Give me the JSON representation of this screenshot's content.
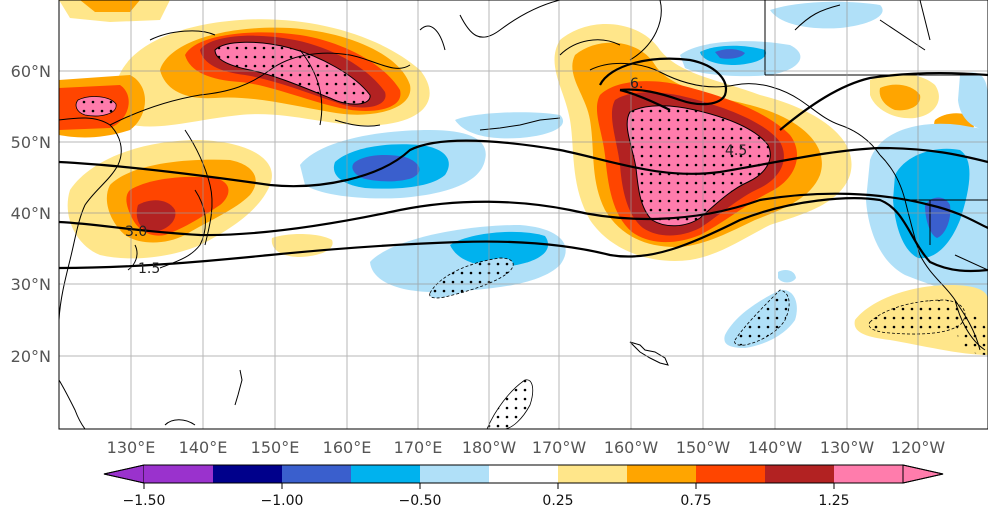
{
  "map": {
    "lon_ticks": [
      "130°E",
      "140°E",
      "150°E",
      "160°E",
      "170°E",
      "180°W",
      "170°W",
      "160°W",
      "150°W",
      "140°W",
      "130°W",
      "120°W"
    ],
    "lat_ticks": [
      "60°N",
      "50°N",
      "40°N",
      "30°N",
      "20°N"
    ],
    "contour_labels": [
      "3.0",
      "1.5",
      "4.5",
      "6."
    ],
    "colormap": [
      "#9a32cd",
      "#00008b",
      "#3a5fcd",
      "#00b2ee",
      "#b0e0f8",
      "#ffffff",
      "#ffe68a",
      "#ffa500",
      "#ff4500",
      "#b22222",
      "#ff7cac"
    ],
    "land_outline_color": "#000000",
    "stipple": "significance dots"
  },
  "colorbar": {
    "tick_labels": [
      "−1.50",
      "−1.00",
      "−0.50",
      "0.25",
      "0.75",
      "1.25"
    ],
    "extend": "both"
  }
}
